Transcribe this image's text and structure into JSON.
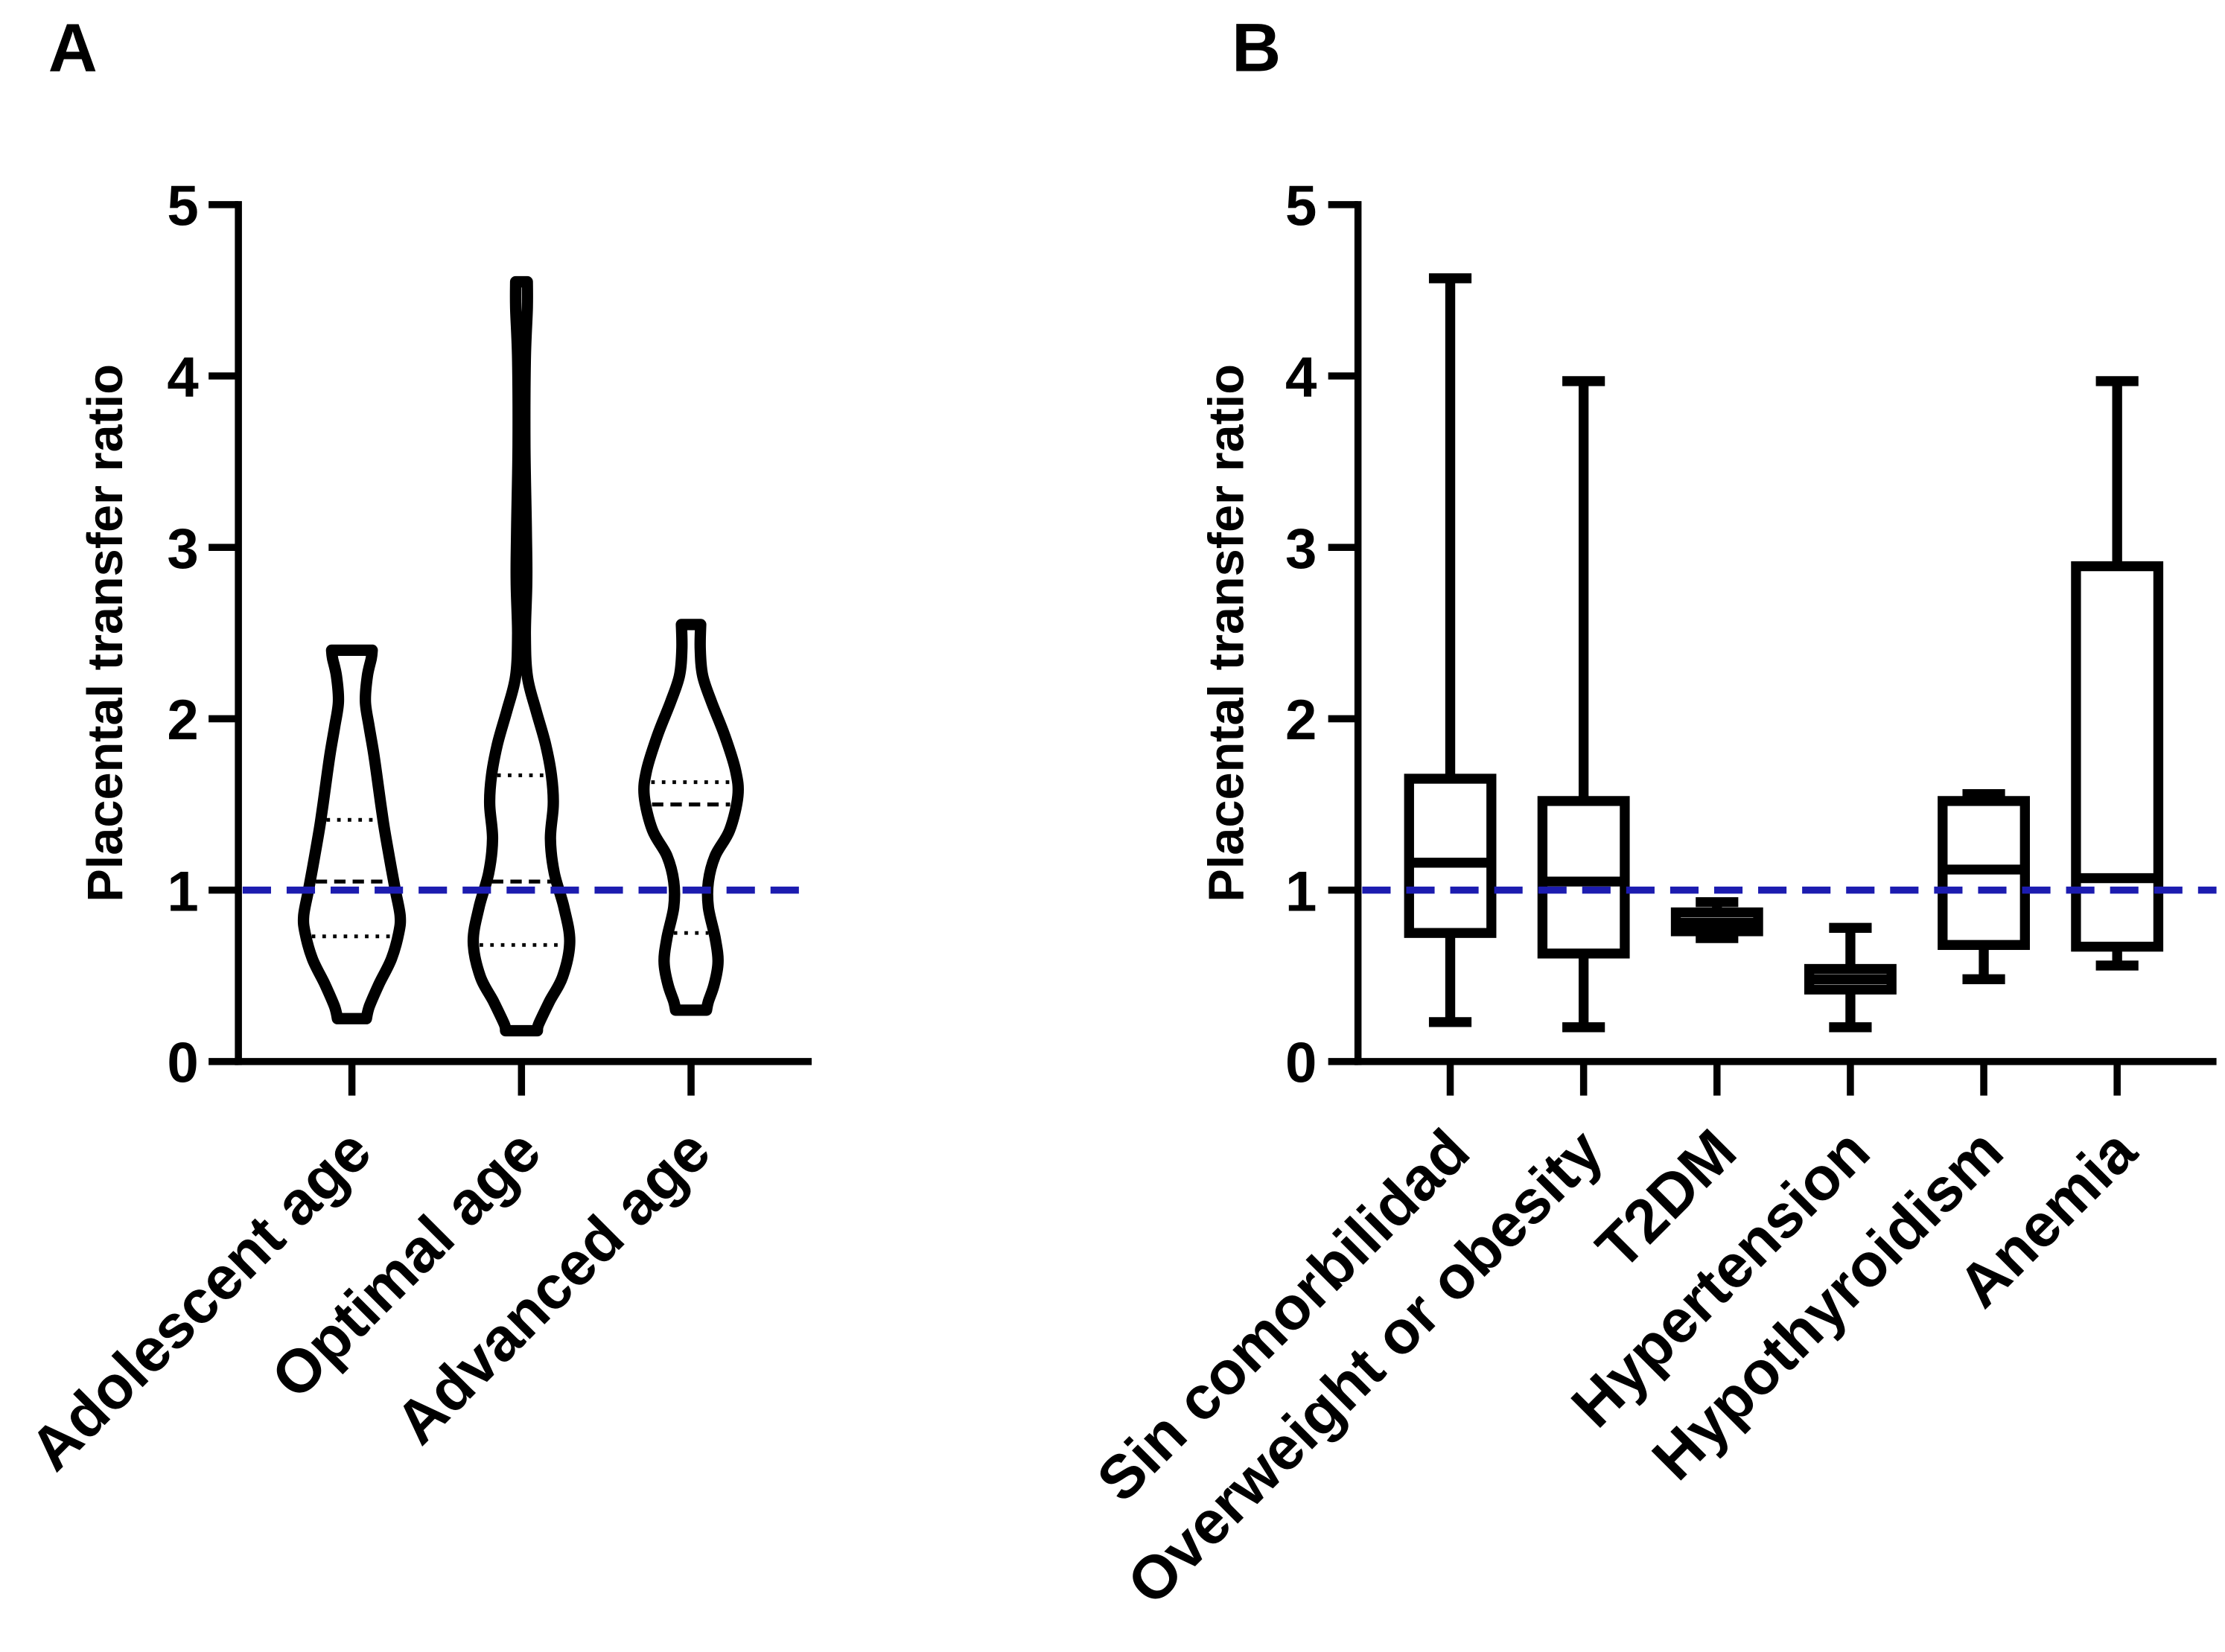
{
  "colors": {
    "ink": "#000000",
    "background": "#ffffff",
    "reference_line": "#1c1cb0"
  },
  "chart_data": [
    {
      "panel": "A",
      "type": "violin",
      "ylabel": "Placental transfer ratio",
      "ylim": [
        0,
        5
      ],
      "yticks": [
        "0",
        "1",
        "2",
        "3",
        "4",
        "5"
      ],
      "reference_line": {
        "y": 1
      },
      "categories": [
        "Adolescent age",
        "Optimal age",
        "Advanced age"
      ],
      "series": [
        {
          "min": 0.25,
          "q1": 0.73,
          "median": 1.05,
          "q3": 1.41,
          "max": 2.4,
          "density": [
            [
              0.25,
              0.3
            ],
            [
              0.32,
              0.36
            ],
            [
              0.45,
              0.56
            ],
            [
              0.6,
              0.82
            ],
            [
              0.75,
              0.97
            ],
            [
              0.85,
              1.0
            ],
            [
              1.0,
              0.9
            ],
            [
              1.2,
              0.77
            ],
            [
              1.4,
              0.65
            ],
            [
              1.6,
              0.55
            ],
            [
              1.8,
              0.45
            ],
            [
              1.95,
              0.36
            ],
            [
              2.1,
              0.28
            ],
            [
              2.25,
              0.32
            ],
            [
              2.35,
              0.4
            ],
            [
              2.4,
              0.42
            ]
          ]
        },
        {
          "min": 0.18,
          "q1": 0.68,
          "median": 1.05,
          "q3": 1.67,
          "max": 4.55,
          "density": [
            [
              0.18,
              0.33
            ],
            [
              0.22,
              0.36
            ],
            [
              0.35,
              0.58
            ],
            [
              0.5,
              0.86
            ],
            [
              0.7,
              1.0
            ],
            [
              0.9,
              0.88
            ],
            [
              1.1,
              0.68
            ],
            [
              1.3,
              0.6
            ],
            [
              1.5,
              0.66
            ],
            [
              1.67,
              0.62
            ],
            [
              1.85,
              0.5
            ],
            [
              2.05,
              0.3
            ],
            [
              2.25,
              0.12
            ],
            [
              2.5,
              0.08
            ],
            [
              2.8,
              0.11
            ],
            [
              3.1,
              0.1
            ],
            [
              3.6,
              0.07
            ],
            [
              4.1,
              0.08
            ],
            [
              4.4,
              0.12
            ],
            [
              4.55,
              0.12
            ]
          ]
        },
        {
          "min": 0.3,
          "q1": 0.75,
          "median": 1.5,
          "q3": 1.63,
          "max": 2.55,
          "density": [
            [
              0.3,
              0.32
            ],
            [
              0.35,
              0.36
            ],
            [
              0.45,
              0.48
            ],
            [
              0.58,
              0.56
            ],
            [
              0.72,
              0.5
            ],
            [
              0.9,
              0.36
            ],
            [
              1.05,
              0.36
            ],
            [
              1.2,
              0.5
            ],
            [
              1.35,
              0.8
            ],
            [
              1.55,
              0.97
            ],
            [
              1.7,
              0.92
            ],
            [
              1.9,
              0.7
            ],
            [
              2.1,
              0.42
            ],
            [
              2.25,
              0.24
            ],
            [
              2.4,
              0.19
            ],
            [
              2.55,
              0.2
            ]
          ]
        }
      ]
    },
    {
      "panel": "B",
      "type": "box",
      "ylabel": "Placental transfer ratio",
      "ylim": [
        0,
        5
      ],
      "yticks": [
        "0",
        "1",
        "2",
        "3",
        "4",
        "5"
      ],
      "reference_line": {
        "y": 1
      },
      "categories": [
        "Sin comorbilidad",
        "Overweight or obesity",
        "T2DM",
        "Hypertension",
        "Hypothyroidism",
        "Anemia"
      ],
      "series": [
        {
          "min": 0.23,
          "q1": 0.75,
          "median": 1.16,
          "q3": 1.65,
          "max": 4.57
        },
        {
          "min": 0.2,
          "q1": 0.63,
          "median": 1.05,
          "q3": 1.52,
          "max": 3.97
        },
        {
          "min": 0.72,
          "q1": 0.76,
          "median": 0.81,
          "q3": 0.87,
          "max": 0.93
        },
        {
          "min": 0.2,
          "q1": 0.42,
          "median": 0.48,
          "q3": 0.54,
          "max": 0.78
        },
        {
          "min": 0.48,
          "q1": 0.68,
          "median": 1.12,
          "q3": 1.52,
          "max": 1.56
        },
        {
          "min": 0.56,
          "q1": 0.67,
          "median": 1.07,
          "q3": 2.89,
          "max": 3.97
        }
      ]
    }
  ]
}
